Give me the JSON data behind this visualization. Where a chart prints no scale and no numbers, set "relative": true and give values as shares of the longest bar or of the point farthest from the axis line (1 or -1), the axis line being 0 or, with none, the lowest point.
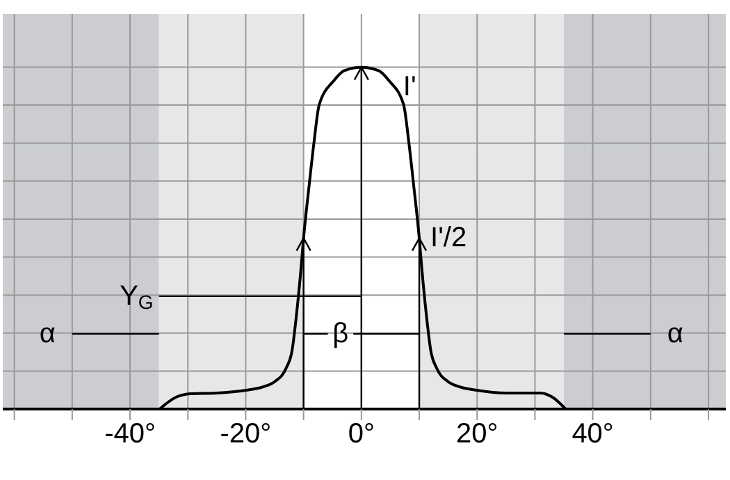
{
  "chart_data": {
    "type": "line",
    "relative": true,
    "grid": true,
    "marker": "none",
    "line_style": "solid",
    "tick_labels": "x",
    "xlim": [
      -62,
      63
    ],
    "xticks": [
      {
        "value": -60,
        "label": null
      },
      {
        "value": -50,
        "label": null
      },
      {
        "value": -40,
        "label": "-40°"
      },
      {
        "value": -30,
        "label": null
      },
      {
        "value": -20,
        "label": "-20°"
      },
      {
        "value": -10,
        "label": null
      },
      {
        "value": 0,
        "label": "0°"
      },
      {
        "value": 10,
        "label": null
      },
      {
        "value": 20,
        "label": "20°"
      },
      {
        "value": 30,
        "label": null
      },
      {
        "value": 40,
        "label": "40°"
      },
      {
        "value": 50,
        "label": null
      },
      {
        "value": 60,
        "label": null
      }
    ],
    "bands": [
      {
        "axis": "x",
        "from": -62,
        "to": -35,
        "color": "#cbcdd0"
      },
      {
        "axis": "x",
        "from": -35,
        "to": -10,
        "color": "#e6e7e9"
      },
      {
        "axis": "x",
        "from": 10,
        "to": 35,
        "color": "#e6e7e9"
      },
      {
        "axis": "x",
        "from": 35,
        "to": 63,
        "color": "#cbcdd0"
      }
    ],
    "series": [
      {
        "type": "line",
        "color": "#000000",
        "x": [
          -34.9,
          -32,
          -29.6,
          -25,
          -20,
          -17,
          -15,
          -13,
          -12,
          -11.2,
          -10.5,
          -10,
          -9,
          -8.2,
          -7.3,
          -4.8,
          -3,
          0,
          3,
          4.8,
          7.3,
          8.2,
          9,
          10,
          10.5,
          11.2,
          12,
          13,
          15,
          17,
          20,
          25,
          31,
          33,
          35.3
        ],
        "values": [
          0,
          0.035,
          0.045,
          0.047,
          0.055,
          0.065,
          0.08,
          0.12,
          0.17,
          0.28,
          0.4,
          0.5,
          0.66,
          0.78,
          0.89,
          0.96,
          0.99,
          1,
          0.99,
          0.96,
          0.89,
          0.78,
          0.66,
          0.5,
          0.4,
          0.28,
          0.17,
          0.12,
          0.08,
          0.065,
          0.055,
          0.047,
          0.047,
          0.035,
          0
        ]
      },
      {
        "type": "line",
        "color": "#000000",
        "x": [
          -35,
          0
        ],
        "values": [
          0.33,
          0.33
        ]
      },
      {
        "type": "line",
        "color": "#000000",
        "x": [
          -50,
          -35
        ],
        "values": [
          0.22,
          0.22
        ]
      },
      {
        "type": "line",
        "color": "#000000",
        "x": [
          35,
          50
        ],
        "values": [
          0.22,
          0.22
        ]
      },
      {
        "type": "line",
        "color": "#000000",
        "x": [
          -10,
          -5.8
        ],
        "values": [
          0.22,
          0.22
        ]
      },
      {
        "type": "line",
        "color": "#000000",
        "x": [
          -1.4,
          10
        ],
        "values": [
          0.22,
          0.22
        ]
      }
    ],
    "annotations": [
      "I'",
      "I'/2",
      "Y$_{G}$",
      "α",
      "β",
      "α"
    ]
  }
}
